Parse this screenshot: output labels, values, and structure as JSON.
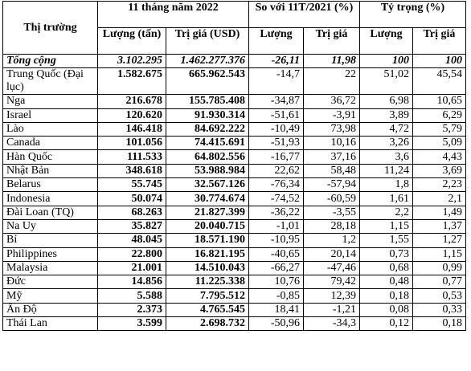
{
  "header": {
    "market": "Thị trường",
    "period": "11 tháng năm 2022",
    "compare": "So với 11T/2021 (%)",
    "share": "Tỷ trọng (%)",
    "qty": "Lượng (tấn)",
    "value": "Trị giá (USD)",
    "qty2": "Lượng",
    "value2": "Trị giá",
    "qty3": "Lượng",
    "value3": "Trị giá"
  },
  "total": {
    "name": "Tổng cộng",
    "qty": "3.102.295",
    "value": "1.462.277.376",
    "qty_change": "-26,11",
    "value_change": "11,98",
    "qty_share": "100",
    "value_share": "100"
  },
  "rows": [
    {
      "name": "Trung Quốc (Đại lục)",
      "qty": "1.582.675",
      "value": "665.962.543",
      "qty_change": "-14,7",
      "value_change": "22",
      "qty_share": "51,02",
      "value_share": "45,54"
    },
    {
      "name": "Nga",
      "qty": "216.678",
      "value": "155.785.408",
      "qty_change": "-34,87",
      "value_change": "36,72",
      "qty_share": "6,98",
      "value_share": "10,65"
    },
    {
      "name": "Israel",
      "qty": "120.620",
      "value": "91.930.314",
      "qty_change": "-51,61",
      "value_change": "-3,91",
      "qty_share": "3,89",
      "value_share": "6,29"
    },
    {
      "name": "Lào",
      "qty": "146.418",
      "value": "84.692.222",
      "qty_change": "-10,49",
      "value_change": "73,98",
      "qty_share": "4,72",
      "value_share": "5,79"
    },
    {
      "name": "Canada",
      "qty": "101.056",
      "value": "74.415.691",
      "qty_change": "-51,93",
      "value_change": "10,16",
      "qty_share": "3,26",
      "value_share": "5,09"
    },
    {
      "name": "Hàn Quốc",
      "qty": "111.533",
      "value": "64.802.556",
      "qty_change": "-16,77",
      "value_change": "37,16",
      "qty_share": "3,6",
      "value_share": "4,43"
    },
    {
      "name": "Nhật Bản",
      "qty": "348.618",
      "value": "53.988.984",
      "qty_change": "22,62",
      "value_change": "58,48",
      "qty_share": "11,24",
      "value_share": "3,69"
    },
    {
      "name": "Belarus",
      "qty": "55.745",
      "value": "32.567.126",
      "qty_change": "-76,34",
      "value_change": "-57,94",
      "qty_share": "1,8",
      "value_share": "2,23"
    },
    {
      "name": "Indonesia",
      "qty": "50.074",
      "value": "30.774.674",
      "qty_change": "-74,52",
      "value_change": "-60,59",
      "qty_share": "1,61",
      "value_share": "2,1"
    },
    {
      "name": "Đài Loan (TQ)",
      "qty": "68.263",
      "value": "21.827.399",
      "qty_change": "-36,22",
      "value_change": "-3,55",
      "qty_share": "2,2",
      "value_share": "1,49"
    },
    {
      "name": "Na Uy",
      "qty": "35.827",
      "value": "20.040.715",
      "qty_change": "-1,01",
      "value_change": "28,18",
      "qty_share": "1,15",
      "value_share": "1,37"
    },
    {
      "name": "Bỉ",
      "qty": "48.045",
      "value": "18.571.190",
      "qty_change": "-10,95",
      "value_change": "1,2",
      "qty_share": "1,55",
      "value_share": "1,27"
    },
    {
      "name": "Philippines",
      "qty": "22.800",
      "value": "16.821.195",
      "qty_change": "-40,65",
      "value_change": "20,14",
      "qty_share": "0,73",
      "value_share": "1,15"
    },
    {
      "name": "Malaysia",
      "qty": "21.001",
      "value": "14.510.043",
      "qty_change": "-66,27",
      "value_change": "-47,46",
      "qty_share": "0,68",
      "value_share": "0,99"
    },
    {
      "name": "Đức",
      "qty": "14.856",
      "value": "11.225.338",
      "qty_change": "10,76",
      "value_change": "79,42",
      "qty_share": "0,48",
      "value_share": "0,77"
    },
    {
      "name": "Mỹ",
      "qty": "5.588",
      "value": "7.795.512",
      "qty_change": "-0,85",
      "value_change": "12,39",
      "qty_share": "0,18",
      "value_share": "0,53"
    },
    {
      "name": "Ấn Độ",
      "qty": "2.373",
      "value": "4.765.545",
      "qty_change": "18,41",
      "value_change": "-1,21",
      "qty_share": "0,08",
      "value_share": "0,33"
    },
    {
      "name": "Thái Lan",
      "qty": "3.599",
      "value": "2.698.732",
      "qty_change": "-50,96",
      "value_change": "-34,3",
      "qty_share": "0,12",
      "value_share": "0,18"
    }
  ]
}
